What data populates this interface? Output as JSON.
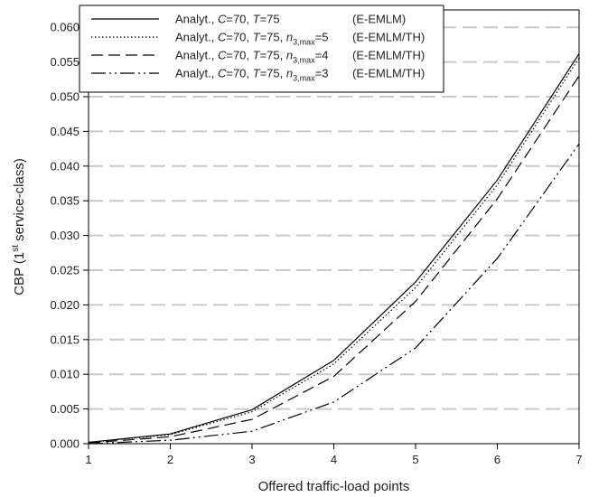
{
  "chart_data": {
    "type": "line",
    "xlabel": "Offered traffic-load points",
    "ylabel_parts": {
      "prefix": "CBP (1",
      "superscript": "st",
      "suffix": " service-class)"
    },
    "xlim": [
      1,
      7
    ],
    "ylim": [
      0,
      0.0625
    ],
    "x_ticks": [
      "1",
      "2",
      "3",
      "4",
      "5",
      "6",
      "7"
    ],
    "y_ticks": [
      "0.000",
      "0.005",
      "0.010",
      "0.015",
      "0.020",
      "0.025",
      "0.030",
      "0.035",
      "0.040",
      "0.045",
      "0.050",
      "0.055",
      "0.060"
    ],
    "grid": "horizontal dashed",
    "legend_position": "top-left",
    "x": [
      1,
      2,
      3,
      4,
      5,
      6,
      7
    ],
    "series": [
      {
        "style": "solid",
        "legend": {
          "pre": "Analyt., ",
          "C": "C",
          "c_val": "=70, ",
          "T": "T",
          "t_val": "=75",
          "n_part": null,
          "tag": "(E-EMLM)"
        },
        "values": [
          0.0002,
          0.0014,
          0.0049,
          0.012,
          0.0233,
          0.038,
          0.0562
        ]
      },
      {
        "style": "dotted",
        "legend": {
          "pre": "Analyt., ",
          "C": "C",
          "c_val": "=70, ",
          "T": "T",
          "t_val": "=75, ",
          "n_part": {
            "n": "n",
            "sub": "3,max",
            "val": "=5"
          },
          "tag": "(E-EMLM/TH)"
        },
        "values": [
          0.0002,
          0.0013,
          0.0046,
          0.0115,
          0.0225,
          0.0373,
          0.0556
        ]
      },
      {
        "style": "dashed",
        "legend": {
          "pre": "Analyt., ",
          "C": "C",
          "c_val": "=70, ",
          "T": "T",
          "t_val": "=75, ",
          "n_part": {
            "n": "n",
            "sub": "3,max",
            "val": "=4"
          },
          "tag": "(E-EMLM/TH)"
        },
        "values": [
          0.0001,
          0.001,
          0.0035,
          0.0097,
          0.0205,
          0.0353,
          0.053
        ]
      },
      {
        "style": "dashdot",
        "legend": {
          "pre": "Analyt., ",
          "C": "C",
          "c_val": "=70, ",
          "T": "T",
          "t_val": "=75, ",
          "n_part": {
            "n": "n",
            "sub": "3,max",
            "val": "=3"
          },
          "tag": "(E-EMLM/TH)"
        },
        "values": [
          0.0,
          0.0005,
          0.0018,
          0.006,
          0.0138,
          0.0267,
          0.0432
        ]
      }
    ]
  }
}
